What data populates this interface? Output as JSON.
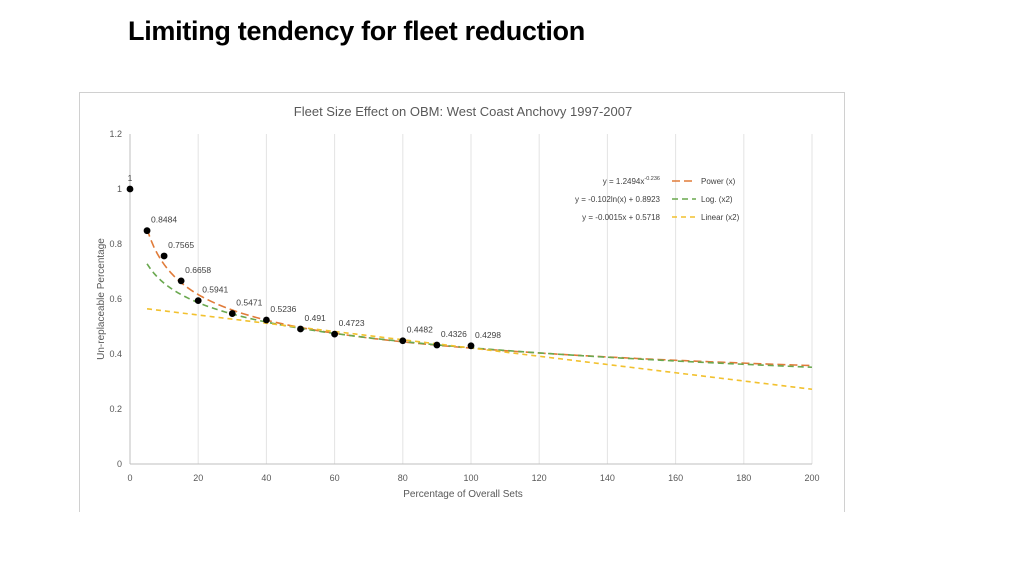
{
  "slide": {
    "title": "Limiting tendency for fleet reduction"
  },
  "chart_data": {
    "type": "scatter",
    "title": "Fleet Size Effect on OBM: West Coast Anchovy 1997-2007",
    "xlabel": "Percentage of Overall Sets",
    "ylabel": "Un-replaceable Percentage",
    "xlim": [
      0,
      200
    ],
    "ylim": [
      0,
      1.2
    ],
    "xticks": [
      0,
      20,
      40,
      60,
      80,
      100,
      120,
      140,
      160,
      180,
      200
    ],
    "yticks": [
      0,
      0.2,
      0.4,
      0.6,
      0.8,
      1,
      1.2
    ],
    "grid": "vertical",
    "points": [
      {
        "x": 0,
        "y": 1,
        "label": "1"
      },
      {
        "x": 5,
        "y": 0.8484,
        "label": "0.8484"
      },
      {
        "x": 10,
        "y": 0.7565,
        "label": "0.7565"
      },
      {
        "x": 15,
        "y": 0.6658,
        "label": "0.6658"
      },
      {
        "x": 20,
        "y": 0.5941,
        "label": "0.5941"
      },
      {
        "x": 30,
        "y": 0.5471,
        "label": "0.5471"
      },
      {
        "x": 40,
        "y": 0.5236,
        "label": "0.5236"
      },
      {
        "x": 50,
        "y": 0.491,
        "label": "0.491"
      },
      {
        "x": 60,
        "y": 0.4723,
        "label": "0.4723"
      },
      {
        "x": 80,
        "y": 0.4482,
        "label": "0.4482"
      },
      {
        "x": 90,
        "y": 0.4326,
        "label": "0.4326"
      },
      {
        "x": 100,
        "y": 0.4298,
        "label": "0.4298"
      }
    ],
    "trendlines": [
      {
        "name": "Power (x)",
        "equation": "y = 1.2494x",
        "equation_sup": "-0.236",
        "model": "power",
        "a": 1.2494,
        "b": -0.236,
        "color": "#E07B39",
        "dash": "8,4"
      },
      {
        "name": "Log. (x2)",
        "equation": "y = -0.102ln(x) + 0.8923",
        "equation_sup": "",
        "model": "log",
        "a": -0.102,
        "b": 0.8923,
        "color": "#6AA84F",
        "dash": "6,4"
      },
      {
        "name": "Linear (x2)",
        "equation": "y = -0.0015x + 0.5718",
        "equation_sup": "",
        "model": "linear",
        "a": -0.0015,
        "b": 0.5718,
        "color": "#F2C12E",
        "dash": "5,4"
      }
    ],
    "legend_position": "top-right"
  }
}
